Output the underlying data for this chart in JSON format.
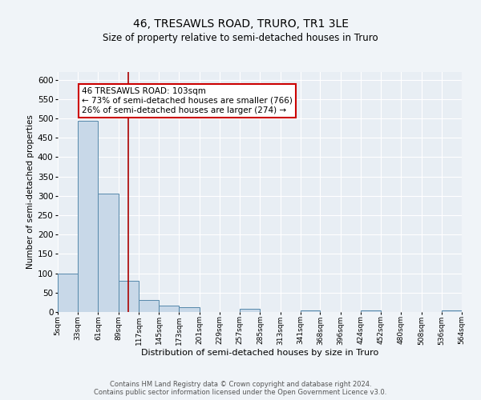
{
  "title": "46, TRESAWLS ROAD, TRURO, TR1 3LE",
  "subtitle": "Size of property relative to semi-detached houses in Truro",
  "xlabel": "Distribution of semi-detached houses by size in Truro",
  "ylabel": "Number of semi-detached properties",
  "footer_line1": "Contains HM Land Registry data © Crown copyright and database right 2024.",
  "footer_line2": "Contains public sector information licensed under the Open Government Licence v3.0.",
  "bin_edges": [
    5,
    33,
    61,
    89,
    117,
    145,
    173,
    201,
    229,
    257,
    285,
    313,
    341,
    368,
    396,
    424,
    452,
    480,
    508,
    536,
    564
  ],
  "bar_heights": [
    100,
    493,
    305,
    80,
    30,
    16,
    13,
    0,
    0,
    8,
    0,
    0,
    5,
    0,
    0,
    5,
    0,
    0,
    0,
    5
  ],
  "bar_color": "#c8d8e8",
  "bar_edge_color": "#5588aa",
  "tick_labels": [
    "5sqm",
    "33sqm",
    "61sqm",
    "89sqm",
    "117sqm",
    "145sqm",
    "173sqm",
    "201sqm",
    "229sqm",
    "257sqm",
    "285sqm",
    "313sqm",
    "341sqm",
    "368sqm",
    "396sqm",
    "424sqm",
    "452sqm",
    "480sqm",
    "508sqm",
    "536sqm",
    "564sqm"
  ],
  "property_size": 103,
  "property_label": "46 TRESAWLS ROAD: 103sqm",
  "pct_smaller": 73,
  "count_smaller": 766,
  "pct_larger": 26,
  "count_larger": 274,
  "vline_color": "#aa0000",
  "annotation_box_color": "#cc0000",
  "ylim": [
    0,
    620
  ],
  "yticks": [
    0,
    50,
    100,
    150,
    200,
    250,
    300,
    350,
    400,
    450,
    500,
    550,
    600
  ],
  "background_color": "#f0f4f8",
  "plot_bg_color": "#e8eef4",
  "title_fontsize": 10,
  "subtitle_fontsize": 8.5,
  "ylabel_fontsize": 7.5,
  "xlabel_fontsize": 8,
  "tick_fontsize": 6.5,
  "ytick_fontsize": 7.5,
  "footer_fontsize": 6,
  "ann_fontsize": 7.5
}
